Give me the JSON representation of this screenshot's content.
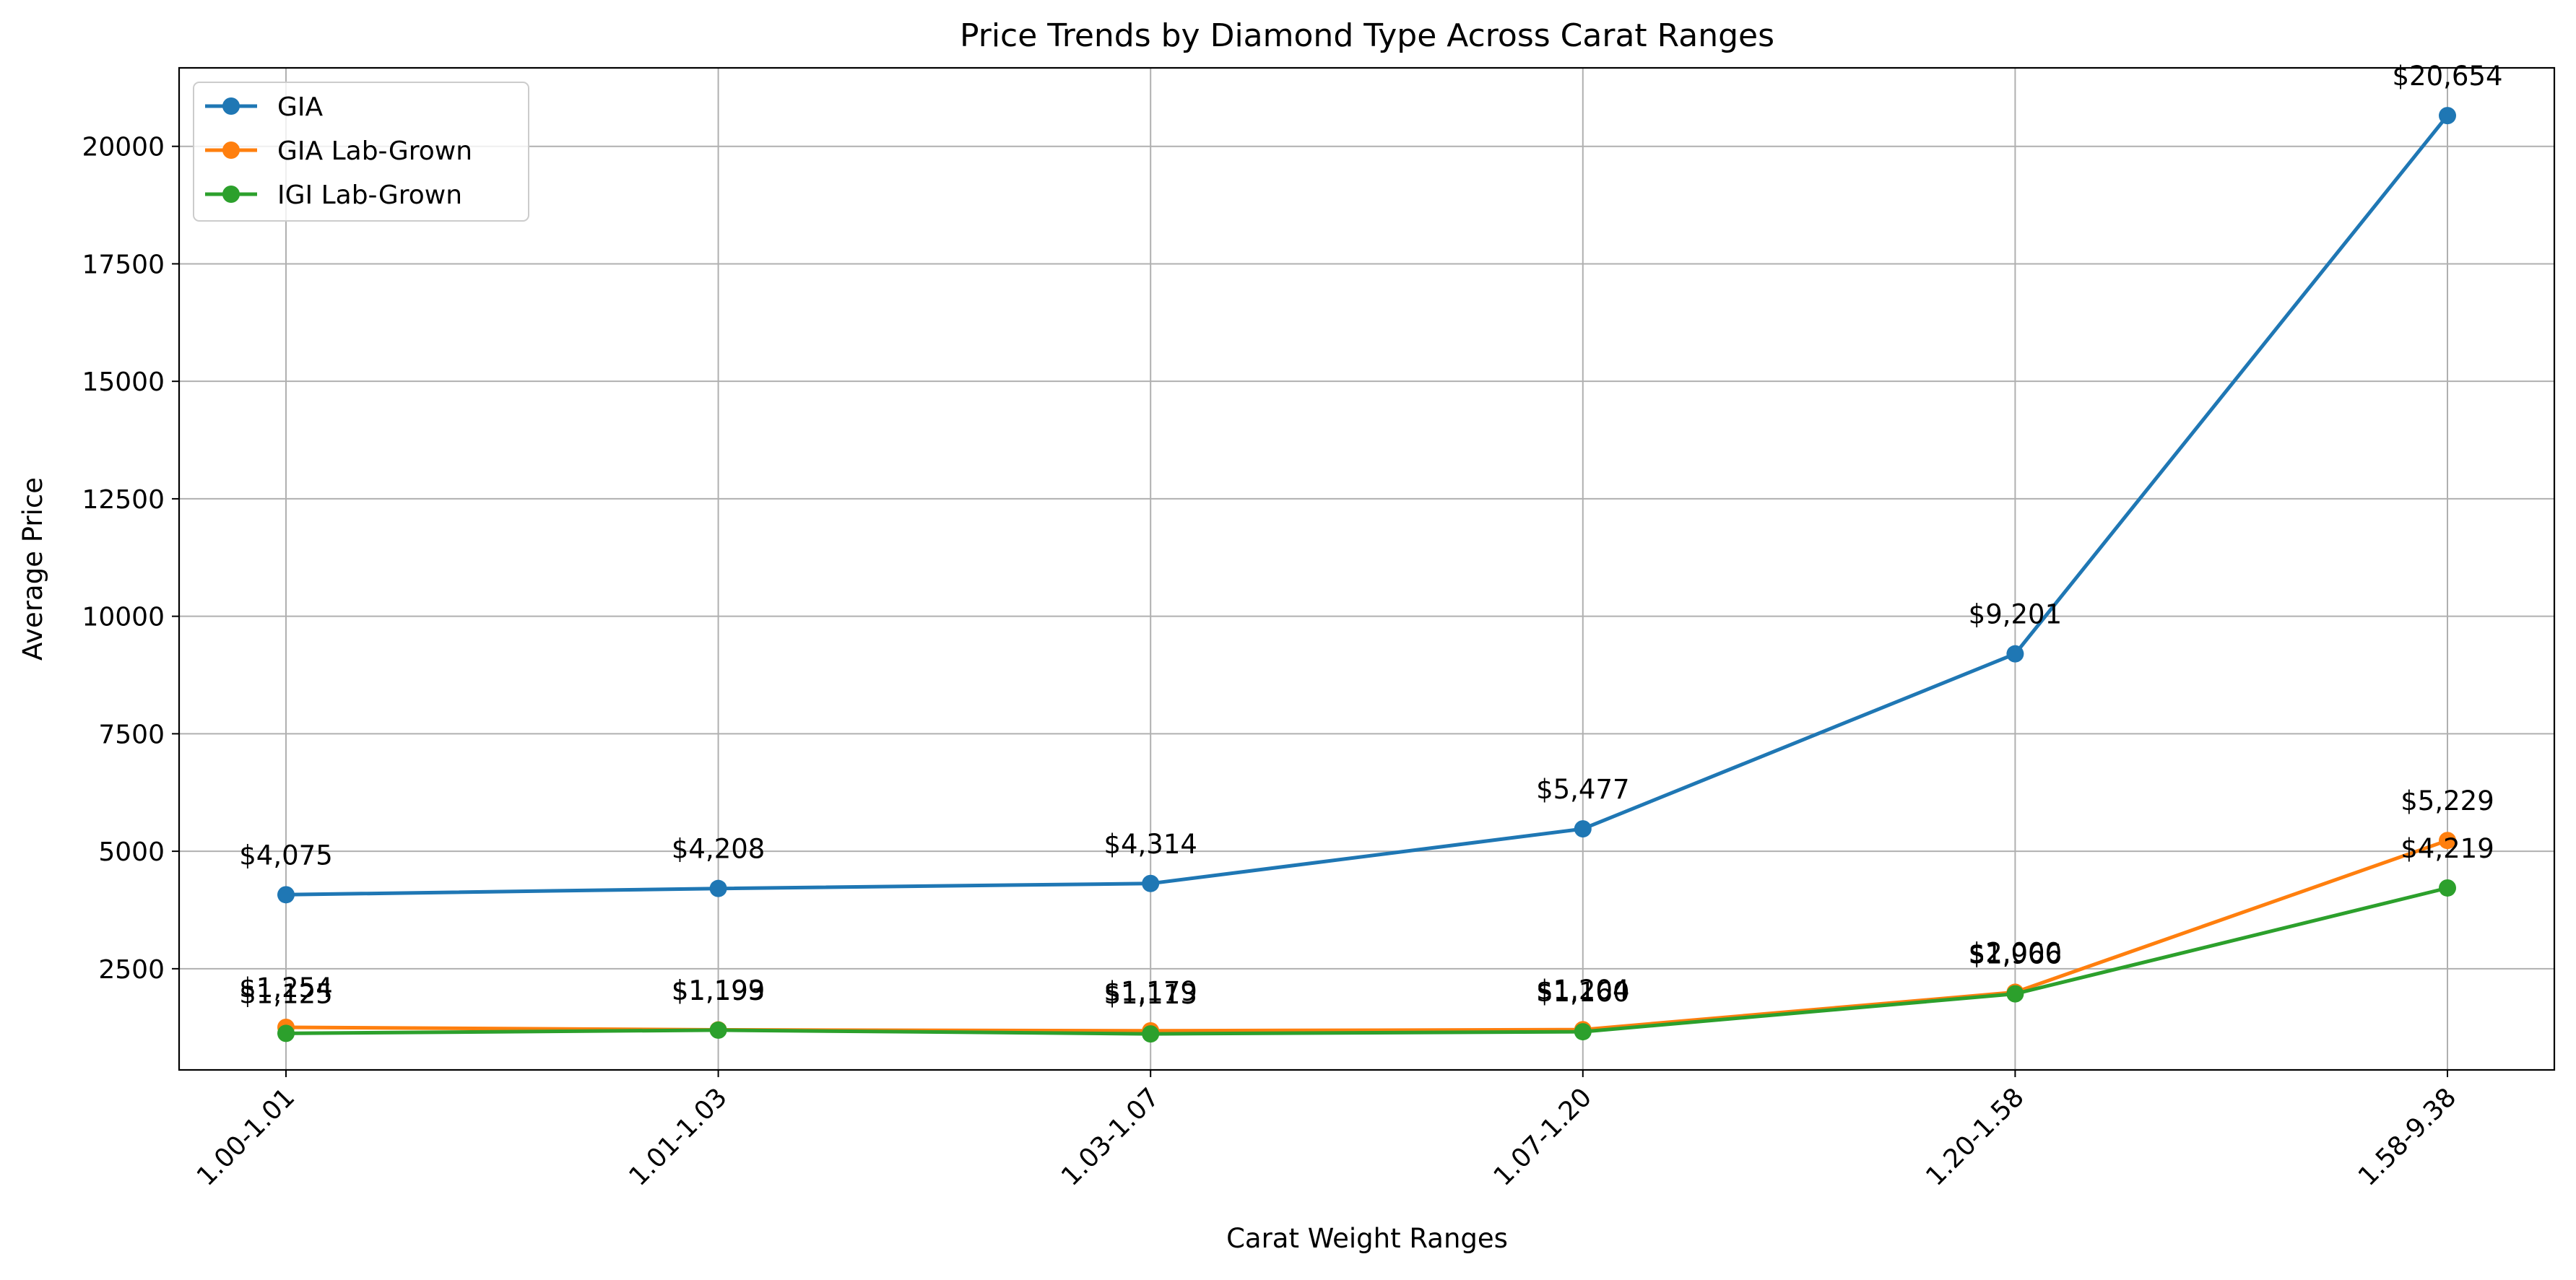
{
  "chart_data": {
    "type": "line",
    "title": "Price Trends by Diamond Type Across Carat Ranges",
    "xlabel": "Carat Weight Ranges",
    "ylabel": "Average Price",
    "categories": [
      "1.00-1.01",
      "1.01-1.03",
      "1.03-1.07",
      "1.07-1.20",
      "1.20-1.58",
      "1.58-9.38"
    ],
    "ylim": [
      347,
      21670
    ],
    "yticks": [
      2500,
      5000,
      7500,
      10000,
      12500,
      15000,
      17500,
      20000
    ],
    "grid": true,
    "legend_position": "upper-left",
    "series": [
      {
        "name": "GIA",
        "color": "#1f77b4",
        "values": [
          4075,
          4208,
          4314,
          5477,
          9201,
          20654
        ],
        "labels": [
          "$4,075",
          "$4,208",
          "$4,314",
          "$5,477",
          "$9,201",
          "$20,654"
        ]
      },
      {
        "name": "GIA Lab-Grown",
        "color": "#ff7f0e",
        "values": [
          1254,
          1199,
          1179,
          1204,
          2000,
          5229
        ],
        "labels": [
          "$1,254",
          "$1,199",
          "$1,179",
          "$1,204",
          "$2,000",
          "$5,229"
        ]
      },
      {
        "name": "IGI Lab-Grown",
        "color": "#2ca02c",
        "values": [
          1125,
          1193,
          1113,
          1160,
          1966,
          4219
        ],
        "labels": [
          "$1,125",
          "$1,193",
          "$1,113",
          "$1,160",
          "$1,966",
          "$4,219"
        ]
      }
    ]
  }
}
